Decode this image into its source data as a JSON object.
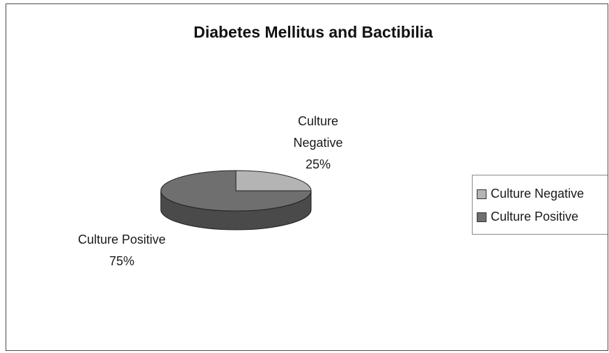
{
  "chart_data": {
    "type": "pie",
    "title": "Diabetes Mellitus and Bactibilia",
    "categories": [
      "Culture Negative",
      "Culture Positive"
    ],
    "values": [
      25,
      75
    ],
    "slice_labels": [
      {
        "lines": [
          "Culture",
          "Negative",
          "25%"
        ]
      },
      {
        "lines": [
          "Culture Positive",
          "75%"
        ]
      }
    ],
    "colors": [
      "#b4b4b4",
      "#6f6f6f"
    ],
    "side_colors": [
      "#8a8a8a",
      "#4a4a4a"
    ],
    "legend": {
      "position": "right",
      "items": [
        "Culture Negative",
        "Culture Positive"
      ]
    }
  }
}
